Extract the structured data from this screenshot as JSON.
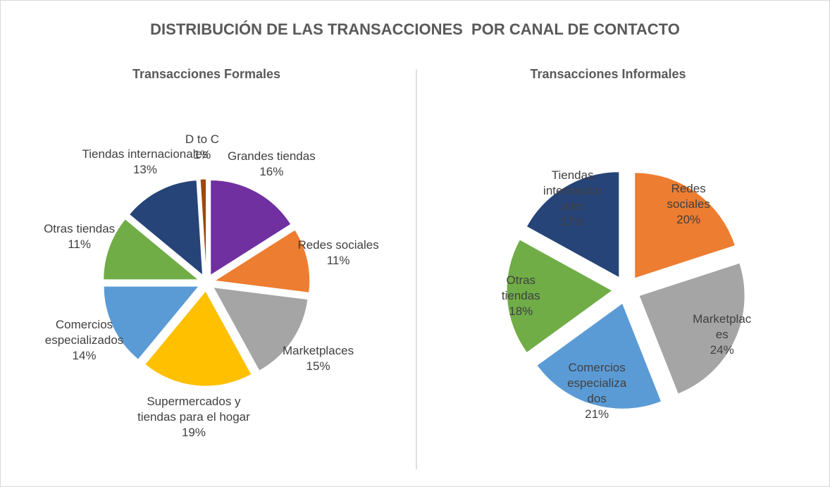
{
  "title": "DISTRIBUCIÓN DE LAS TRANSACCIONES  POR CANAL DE CONTACTO",
  "chart_data": [
    {
      "type": "pie",
      "title": "Transacciones Formales",
      "categories": [
        "Grandes tiendas",
        "Redes sociales",
        "Marketplaces",
        "Supermercados y tiendas para el hogar",
        "Comercios especializados",
        "Otras tiendas",
        "Tiendas internacionales",
        "D to C"
      ],
      "values": [
        16,
        11,
        15,
        19,
        14,
        11,
        13,
        1
      ],
      "value_labels": [
        "16%",
        "11%",
        "15%",
        "19%",
        "14%",
        "11%",
        "13%",
        "1%"
      ],
      "colors": [
        "#7030a0",
        "#ed7d31",
        "#a5a5a5",
        "#ffc000",
        "#5b9bd5",
        "#70ad47",
        "#264478",
        "#9e480e"
      ]
    },
    {
      "type": "pie",
      "title": "Transacciones Informales",
      "categories": [
        "Redes sociales",
        "Marketplaces",
        "Comercios especializados",
        "Otras tiendas",
        "Tiendas internacionales"
      ],
      "values": [
        20,
        24,
        21,
        18,
        17
      ],
      "value_labels": [
        "20%",
        "24%",
        "21%",
        "18%",
        "17%"
      ],
      "colors": [
        "#ed7d31",
        "#a5a5a5",
        "#5b9bd5",
        "#70ad47",
        "#264478"
      ]
    }
  ]
}
